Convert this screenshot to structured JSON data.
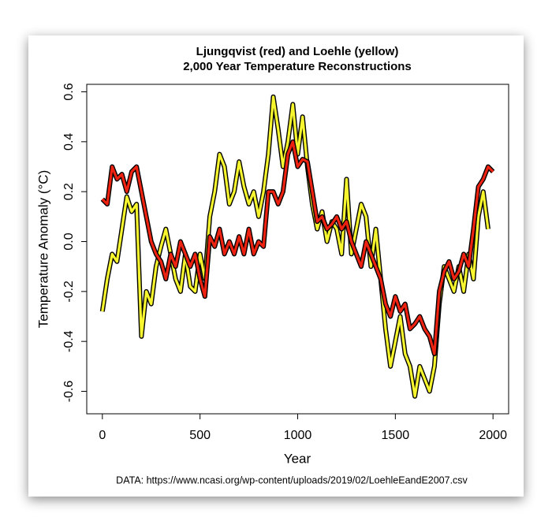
{
  "chart_data": {
    "type": "line",
    "title": "Ljungqvist (red) and Loehle (yellow)",
    "subtitle": "2,000 Year Temperature Reconstructions",
    "x_label": "Year",
    "y_label": "Temperature Anomaly (°C)",
    "note": "DATA: https://www.ncasi.org/wp-content/uploads/2019/02/LoehleEandE2007.csv",
    "x": [
      0,
      25,
      50,
      75,
      100,
      125,
      150,
      175,
      200,
      225,
      250,
      275,
      300,
      325,
      350,
      375,
      400,
      425,
      450,
      475,
      500,
      525,
      550,
      575,
      600,
      625,
      650,
      675,
      700,
      725,
      750,
      775,
      800,
      825,
      850,
      875,
      900,
      925,
      950,
      975,
      1000,
      1025,
      1050,
      1075,
      1100,
      1125,
      1150,
      1175,
      1200,
      1225,
      1250,
      1275,
      1300,
      1325,
      1350,
      1375,
      1400,
      1425,
      1450,
      1475,
      1500,
      1525,
      1550,
      1575,
      1600,
      1625,
      1650,
      1675,
      1700,
      1725,
      1750,
      1775,
      1800,
      1825,
      1850,
      1875,
      1900,
      1925,
      1950,
      1975,
      2000
    ],
    "series": [
      {
        "name": "Loehle",
        "color": "#f7f52e",
        "values": [
          -0.28,
          -0.15,
          -0.05,
          -0.08,
          0.05,
          0.18,
          0.12,
          0.15,
          -0.38,
          -0.2,
          -0.25,
          -0.1,
          -0.02,
          0.05,
          -0.05,
          -0.15,
          -0.2,
          -0.05,
          -0.18,
          -0.2,
          -0.05,
          -0.15,
          0.1,
          0.2,
          0.35,
          0.3,
          0.15,
          0.2,
          0.32,
          0.22,
          0.15,
          0.2,
          0.1,
          0.2,
          0.35,
          0.58,
          0.45,
          0.3,
          0.4,
          0.55,
          0.35,
          0.5,
          0.3,
          0.15,
          0.05,
          0.12,
          0.0,
          0.08,
          0.05,
          -0.05,
          0.25,
          -0.05,
          0.05,
          0.15,
          0.1,
          -0.1,
          0.05,
          -0.15,
          -0.35,
          -0.5,
          -0.4,
          -0.3,
          -0.45,
          -0.5,
          -0.62,
          -0.5,
          -0.55,
          -0.6,
          -0.5,
          -0.25,
          -0.1,
          -0.15,
          -0.2,
          -0.1,
          -0.2,
          -0.05,
          -0.15,
          0.1,
          0.2,
          0.05,
          null
        ]
      },
      {
        "name": "Ljungqvist",
        "color": "#ee2211",
        "values": [
          0.17,
          0.15,
          0.3,
          0.25,
          0.27,
          0.2,
          0.28,
          0.3,
          0.2,
          0.1,
          0.0,
          -0.05,
          -0.08,
          -0.15,
          -0.05,
          -0.1,
          0.0,
          -0.05,
          -0.1,
          -0.05,
          -0.15,
          -0.22,
          0.02,
          -0.02,
          0.05,
          -0.05,
          0.0,
          -0.05,
          0.02,
          -0.05,
          0.05,
          -0.05,
          0.0,
          -0.02,
          0.2,
          0.2,
          0.15,
          0.2,
          0.35,
          0.4,
          0.3,
          0.33,
          0.32,
          0.2,
          0.08,
          0.1,
          0.05,
          0.07,
          0.1,
          0.05,
          0.08,
          0.0,
          -0.05,
          -0.1,
          0.0,
          -0.05,
          -0.1,
          -0.15,
          -0.25,
          -0.3,
          -0.22,
          -0.28,
          -0.25,
          -0.35,
          -0.33,
          -0.3,
          -0.35,
          -0.38,
          -0.45,
          -0.2,
          -0.12,
          -0.08,
          -0.15,
          -0.12,
          -0.05,
          -0.1,
          0.05,
          0.22,
          0.25,
          0.3,
          0.28
        ]
      }
    ],
    "xlim": [
      -80,
      2080
    ],
    "ylim": [
      -0.69,
      0.63
    ],
    "xticks": [
      0,
      500,
      1000,
      1500,
      2000
    ],
    "yticks": [
      -0.6,
      -0.4,
      -0.2,
      {
        "value": 0,
        "label": "0.0"
      },
      0.2,
      0.4,
      0.6
    ],
    "outline_color": "#000000"
  }
}
